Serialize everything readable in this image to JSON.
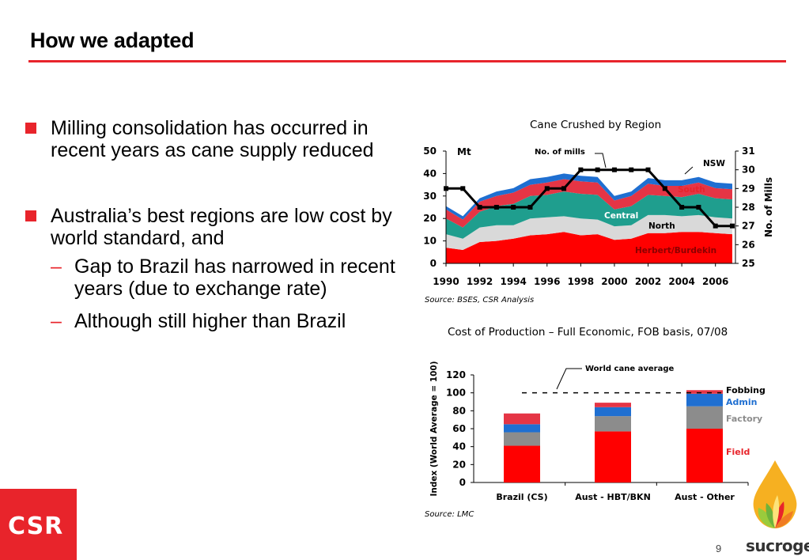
{
  "slide": {
    "title": "How we adapted",
    "page_number": "9",
    "brand_name": "sucrogen",
    "company_logo_text": "CSR"
  },
  "bullets": [
    {
      "text": "Milling consolidation has occurred in recent years as cane supply reduced",
      "subs": []
    },
    {
      "text": "Australia’s best regions are low cost by world standard, and",
      "subs": [
        "Gap to Brazil has narrowed in recent years (due to exchange rate)",
        "Although still higher than Brazil"
      ]
    }
  ],
  "chart1_meta": {
    "source": "Source: BSES, CSR Analysis",
    "y_unit": "Mt",
    "mills_callout": "No. of mills"
  },
  "chart2_meta": {
    "source": "Source: LMC",
    "average_callout": "World cane average"
  },
  "colors": {
    "accent": "#e8242b",
    "herbert": "#ff0000",
    "north": "#d9d9d9",
    "central": "#1f9e8e",
    "south": "#e53545",
    "nsw": "#1f6fd1",
    "mills_line": "#000000",
    "field": "#ff0000",
    "factory": "#8c8c8c",
    "admin": "#1f6fd1",
    "fobbing": "#e53545"
  },
  "chart_data": [
    {
      "type": "area",
      "title": "Cane Crushed by Region",
      "x": [
        1990,
        1991,
        1992,
        1993,
        1994,
        1995,
        1996,
        1997,
        1998,
        1999,
        2000,
        2001,
        2002,
        2003,
        2004,
        2005,
        2006,
        2007
      ],
      "x_tick_labels": [
        "1990",
        "1992",
        "1994",
        "1996",
        "1998",
        "2000",
        "2002",
        "2004",
        "2006"
      ],
      "ylabel": "",
      "y2label": "No. of Mills",
      "ylim": [
        0,
        50
      ],
      "y_ticks": [
        0,
        10,
        20,
        30,
        40,
        50
      ],
      "y2lim": [
        25,
        31
      ],
      "y2_ticks": [
        25,
        26,
        27,
        28,
        29,
        30,
        31
      ],
      "stacked": true,
      "series": [
        {
          "name": "Herbert/Burdekin",
          "values": [
            7,
            6,
            9.5,
            10,
            11,
            12.5,
            13,
            14,
            12.5,
            13,
            10.5,
            11,
            13.5,
            13.5,
            14,
            14,
            13.5,
            13
          ]
        },
        {
          "name": "North",
          "values": [
            6,
            5,
            6.5,
            7,
            6,
            7.5,
            7.5,
            7,
            7.5,
            6.5,
            6,
            6,
            8,
            8,
            7,
            7.5,
            7,
            7
          ]
        },
        {
          "name": "Central",
          "values": [
            7,
            5,
            7,
            8.5,
            9.5,
            10,
            10,
            11,
            11,
            11,
            7.5,
            8.5,
            9,
            8.5,
            8.5,
            9.5,
            8.5,
            8.5
          ]
        },
        {
          "name": "South",
          "values": [
            4,
            3.5,
            4.5,
            4.5,
            5,
            5,
            5.5,
            5.5,
            5.5,
            5.5,
            4,
            4.5,
            5,
            4.5,
            5,
            5,
            4.5,
            4.5
          ]
        },
        {
          "name": "NSW",
          "values": [
            1.5,
            1.5,
            1.5,
            2,
            2,
            2.5,
            2.5,
            2.5,
            2.5,
            2.5,
            2,
            2,
            2.5,
            2.5,
            2.5,
            2.5,
            2.5,
            2.5
          ]
        }
      ],
      "line_series": [
        {
          "name": "No. of mills",
          "axis": "right",
          "values": [
            29,
            29,
            28,
            28,
            28,
            28,
            29,
            29,
            30,
            30,
            30,
            30,
            30,
            29,
            28,
            28,
            27,
            27
          ]
        }
      ]
    },
    {
      "type": "bar",
      "title": "Cost of Production – Full Economic, FOB basis, 07/08",
      "categories": [
        "Brazil (CS)",
        "Aust - HBT/BKN",
        "Aust - Other"
      ],
      "ylabel": "Index (World Average = 100)",
      "ylim": [
        0,
        120
      ],
      "y_ticks": [
        0,
        20,
        40,
        60,
        80,
        100,
        120
      ],
      "stacked": true,
      "reference_line": {
        "name": "World cane average",
        "value": 100
      },
      "series": [
        {
          "name": "Field",
          "values": [
            41,
            57,
            60
          ]
        },
        {
          "name": "Factory",
          "values": [
            15,
            17,
            25
          ]
        },
        {
          "name": "Admin",
          "values": [
            9,
            10,
            14
          ]
        },
        {
          "name": "Fobbing",
          "values": [
            12,
            5,
            4
          ]
        }
      ]
    }
  ]
}
